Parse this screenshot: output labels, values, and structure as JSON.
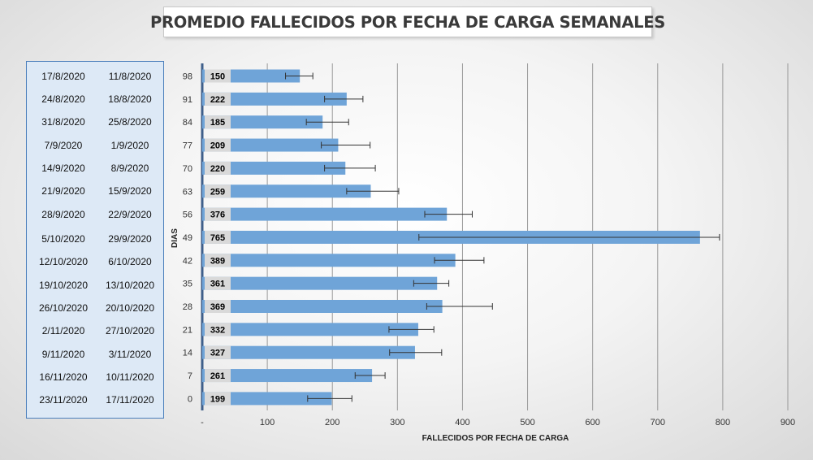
{
  "title": "PROMEDIO FALLECIDOS POR FECHA DE CARGA SEMANALES",
  "date_table": [
    {
      "end": "17/8/2020",
      "start": "11/8/2020"
    },
    {
      "end": "24/8/2020",
      "start": "18/8/2020"
    },
    {
      "end": "31/8/2020",
      "start": "25/8/2020"
    },
    {
      "end": "7/9/2020",
      "start": "1/9/2020"
    },
    {
      "end": "14/9/2020",
      "start": "8/9/2020"
    },
    {
      "end": "21/9/2020",
      "start": "15/9/2020"
    },
    {
      "end": "28/9/2020",
      "start": "22/9/2020"
    },
    {
      "end": "5/10/2020",
      "start": "29/9/2020"
    },
    {
      "end": "12/10/2020",
      "start": "6/10/2020"
    },
    {
      "end": "19/10/2020",
      "start": "13/10/2020"
    },
    {
      "end": "26/10/2020",
      "start": "20/10/2020"
    },
    {
      "end": "2/11/2020",
      "start": "27/10/2020"
    },
    {
      "end": "9/11/2020",
      "start": "3/11/2020"
    },
    {
      "end": "16/11/2020",
      "start": "10/11/2020"
    },
    {
      "end": "23/11/2020",
      "start": "17/11/2020"
    }
  ],
  "colors": {
    "bar": "#6fa4d8",
    "grid": "#999999",
    "label_bg": "#d9d9d9",
    "table_bg": "#dde9f6",
    "table_border": "#4a7ebb"
  },
  "chart_data": {
    "type": "bar",
    "orientation": "horizontal",
    "categories": [
      "98",
      "91",
      "84",
      "77",
      "70",
      "63",
      "56",
      "49",
      "42",
      "35",
      "28",
      "21",
      "14",
      "7",
      "0"
    ],
    "values": [
      150,
      222,
      185,
      209,
      220,
      259,
      376,
      765,
      389,
      361,
      369,
      332,
      327,
      261,
      199
    ],
    "error_low": [
      128,
      188,
      160,
      183,
      188,
      222,
      342,
      333,
      357,
      325,
      345,
      287,
      288,
      235,
      162
    ],
    "error_high": [
      170,
      247,
      225,
      258,
      266,
      302,
      415,
      795,
      433,
      379,
      446,
      356,
      368,
      281,
      230
    ],
    "x_ticks": [
      "-",
      "100",
      "200",
      "300",
      "400",
      "500",
      "600",
      "700",
      "800",
      "900"
    ],
    "xlim": [
      0,
      900
    ],
    "xlabel": "FALLECIDOS POR FECHA DE CARGA",
    "ylabel": "DIAS",
    "grid": true,
    "data_labels": true
  }
}
